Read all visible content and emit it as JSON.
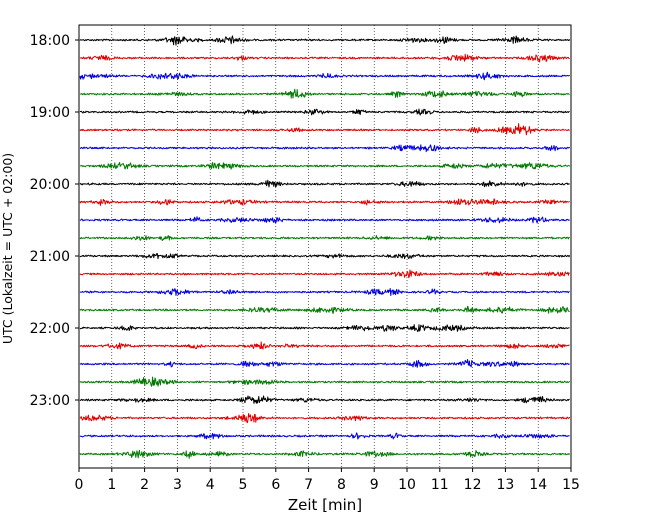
{
  "chart_data": {
    "type": "line",
    "title": "",
    "xlabel": "Zeit  [min]",
    "ylabel": "UTC (Lokalzeit = UTC + 02:00)",
    "xlim": [
      0,
      15
    ],
    "x_ticks": [
      "0",
      "1",
      "2",
      "3",
      "4",
      "5",
      "6",
      "7",
      "8",
      "9",
      "10",
      "11",
      "12",
      "13",
      "14",
      "15"
    ],
    "y_ticks": [
      {
        "label": "18:00",
        "trace_index": 0
      },
      {
        "label": "19:00",
        "trace_index": 4
      },
      {
        "label": "20:00",
        "trace_index": 8
      },
      {
        "label": "21:00",
        "trace_index": 12
      },
      {
        "label": "22:00",
        "trace_index": 16
      },
      {
        "label": "23:00",
        "trace_index": 20
      }
    ],
    "grid": "vertical dotted at each minute",
    "trace_interval_minutes": 15,
    "trace_count": 24,
    "color_cycle": [
      "#000000",
      "#e00000",
      "#0000e0",
      "#007a00"
    ],
    "series": [
      {
        "start": "18:00",
        "color": "#000000"
      },
      {
        "start": "18:15",
        "color": "#e00000"
      },
      {
        "start": "18:30",
        "color": "#0000e0"
      },
      {
        "start": "18:45",
        "color": "#007a00"
      },
      {
        "start": "19:00",
        "color": "#000000"
      },
      {
        "start": "19:15",
        "color": "#e00000"
      },
      {
        "start": "19:30",
        "color": "#0000e0"
      },
      {
        "start": "19:45",
        "color": "#007a00"
      },
      {
        "start": "20:00",
        "color": "#000000"
      },
      {
        "start": "20:15",
        "color": "#e00000"
      },
      {
        "start": "20:30",
        "color": "#0000e0"
      },
      {
        "start": "20:45",
        "color": "#007a00"
      },
      {
        "start": "21:00",
        "color": "#000000"
      },
      {
        "start": "21:15",
        "color": "#e00000"
      },
      {
        "start": "21:30",
        "color": "#0000e0"
      },
      {
        "start": "21:45",
        "color": "#007a00"
      },
      {
        "start": "22:00",
        "color": "#000000"
      },
      {
        "start": "22:15",
        "color": "#e00000"
      },
      {
        "start": "22:30",
        "color": "#0000e0"
      },
      {
        "start": "22:45",
        "color": "#007a00"
      },
      {
        "start": "23:00",
        "color": "#000000"
      },
      {
        "start": "23:15",
        "color": "#e00000"
      },
      {
        "start": "23:30",
        "color": "#0000e0"
      },
      {
        "start": "23:45",
        "color": "#007a00"
      }
    ]
  }
}
